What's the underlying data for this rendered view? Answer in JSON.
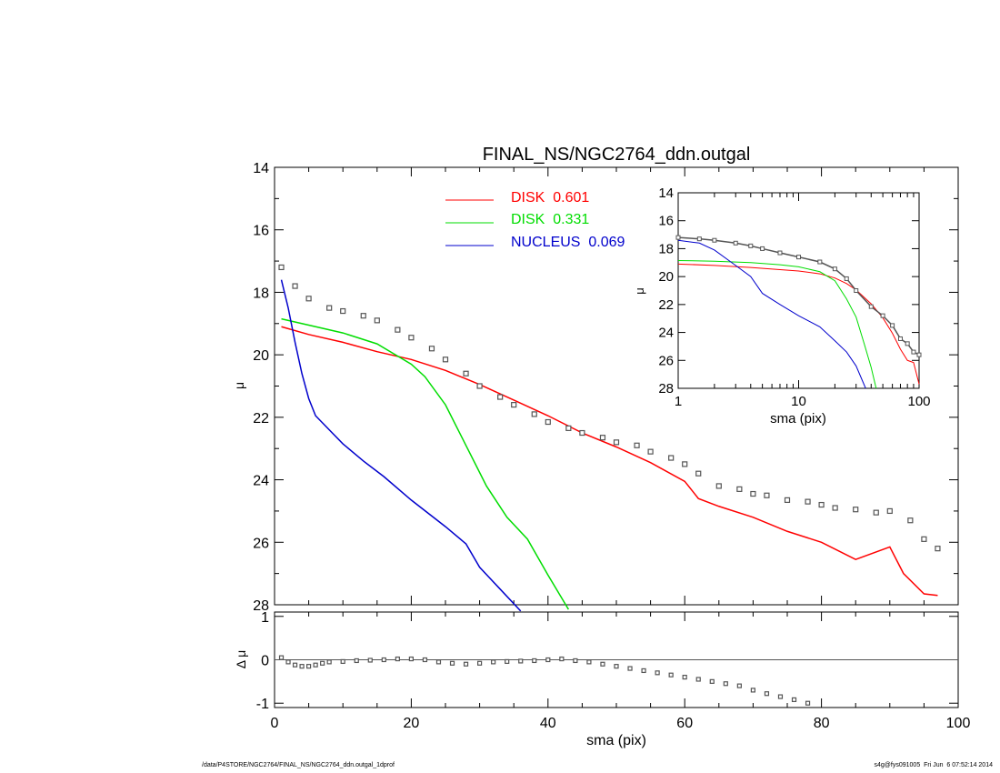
{
  "chart_data": [
    {
      "type": "scatter",
      "title": "FINAL_NS/NGC2764_ddn.outgal",
      "ylabel": "μ",
      "xlim": [
        0,
        100
      ],
      "ylim": [
        28,
        14
      ],
      "y_inverted": true,
      "y_ticks": [
        "14",
        "16",
        "18",
        "20",
        "22",
        "24",
        "26",
        "28"
      ],
      "legend_position": "top-center",
      "series": [
        {
          "name": "DISK  0.601",
          "color": "#ff0000",
          "mode": "line",
          "x": [
            1,
            5,
            10,
            15,
            20,
            25,
            30,
            35,
            40,
            45,
            50,
            55,
            60,
            62,
            65,
            70,
            75,
            80,
            85,
            90,
            92,
            95,
            97
          ],
          "y": [
            19.1,
            19.35,
            19.6,
            19.9,
            20.15,
            20.5,
            20.95,
            21.45,
            21.95,
            22.5,
            22.95,
            23.45,
            24.05,
            24.6,
            24.85,
            25.2,
            25.65,
            26.0,
            26.55,
            26.15,
            27.0,
            27.65,
            27.7
          ]
        },
        {
          "name": "DISK  0.331",
          "color": "#00dd00",
          "mode": "line",
          "x": [
            1,
            5,
            10,
            15,
            20,
            22,
            25,
            28,
            31,
            34,
            37,
            40,
            43
          ],
          "y": [
            18.85,
            19.05,
            19.3,
            19.65,
            20.3,
            20.7,
            21.6,
            22.9,
            24.2,
            25.2,
            25.9,
            27.05,
            28.15
          ]
        },
        {
          "name": "NUCLEUS  0.069",
          "color": "#0000cc",
          "mode": "line",
          "x": [
            1,
            2,
            3,
            4,
            5,
            6,
            8,
            10,
            13,
            16,
            20,
            25,
            28,
            30,
            33,
            36
          ],
          "y": [
            17.6,
            18.5,
            19.6,
            20.6,
            21.4,
            21.95,
            22.4,
            22.85,
            23.4,
            23.9,
            24.65,
            25.5,
            26.05,
            26.8,
            27.5,
            28.2
          ]
        },
        {
          "name": "",
          "color": "#555555",
          "mode": "markers",
          "x": [
            1,
            3,
            5,
            8,
            10,
            13,
            15,
            18,
            20,
            23,
            25,
            28,
            30,
            33,
            35,
            38,
            40,
            43,
            45,
            48,
            50,
            53,
            55,
            58,
            60,
            62,
            65,
            68,
            70,
            72,
            75,
            78,
            80,
            82,
            85,
            88,
            90,
            93,
            95,
            97
          ],
          "y": [
            17.2,
            17.8,
            18.2,
            18.5,
            18.6,
            18.75,
            18.9,
            19.2,
            19.45,
            19.8,
            20.15,
            20.6,
            21.0,
            21.35,
            21.6,
            21.9,
            22.15,
            22.35,
            22.5,
            22.65,
            22.8,
            22.9,
            23.1,
            23.3,
            23.5,
            23.8,
            24.2,
            24.3,
            24.45,
            24.5,
            24.65,
            24.7,
            24.8,
            24.9,
            24.95,
            25.05,
            25.0,
            25.3,
            25.9,
            26.2
          ]
        }
      ]
    },
    {
      "type": "scatter",
      "xlabel": "sma (pix)",
      "ylabel": "Δ μ",
      "xlim": [
        0,
        100
      ],
      "ylim": [
        -1.1,
        1.1
      ],
      "x_ticks": [
        "0",
        "20",
        "40",
        "60",
        "80",
        "100"
      ],
      "y_ticks": [
        "1",
        "0",
        "-1"
      ],
      "series": [
        {
          "name": "",
          "color": "#555555",
          "mode": "markers",
          "x": [
            1,
            2,
            3,
            4,
            5,
            6,
            7,
            8,
            10,
            12,
            14,
            16,
            18,
            20,
            22,
            24,
            26,
            28,
            30,
            32,
            34,
            36,
            38,
            40,
            42,
            44,
            46,
            48,
            50,
            52,
            54,
            56,
            58,
            60,
            62,
            64,
            66,
            68,
            70,
            72,
            74,
            76,
            78
          ],
          "y": [
            0.05,
            -0.05,
            -0.12,
            -0.15,
            -0.15,
            -0.12,
            -0.08,
            -0.05,
            -0.04,
            -0.02,
            -0.01,
            0.0,
            0.02,
            0.02,
            0.0,
            -0.05,
            -0.08,
            -0.1,
            -0.08,
            -0.05,
            -0.04,
            -0.03,
            -0.02,
            0.0,
            0.02,
            -0.02,
            -0.05,
            -0.1,
            -0.15,
            -0.2,
            -0.25,
            -0.3,
            -0.35,
            -0.4,
            -0.45,
            -0.5,
            -0.55,
            -0.6,
            -0.7,
            -0.78,
            -0.85,
            -0.92,
            -1.0
          ]
        }
      ]
    },
    {
      "type": "line",
      "xlabel": "sma (pix)",
      "ylabel": "μ",
      "x_scale": "log",
      "xlim": [
        1,
        100
      ],
      "ylim": [
        28,
        14
      ],
      "y_inverted": true,
      "x_ticks": [
        "1",
        "10",
        "100"
      ],
      "y_ticks": [
        "14",
        "16",
        "18",
        "20",
        "22",
        "24",
        "26",
        "28"
      ],
      "series": [
        {
          "name": "",
          "color": "#ff0000",
          "x": [
            1,
            2,
            4,
            7,
            10,
            15,
            20,
            25,
            30,
            40,
            50,
            60,
            70,
            80,
            90,
            100
          ],
          "y": [
            19.1,
            19.2,
            19.35,
            19.5,
            19.6,
            19.8,
            20.1,
            20.5,
            20.95,
            21.95,
            22.95,
            24.05,
            25.2,
            26.0,
            26.15,
            27.7
          ]
        },
        {
          "name": "",
          "color": "#00dd00",
          "x": [
            1,
            2,
            4,
            7,
            10,
            15,
            20,
            25,
            30,
            35,
            40,
            44
          ],
          "y": [
            18.85,
            18.9,
            19.0,
            19.15,
            19.3,
            19.65,
            20.3,
            21.6,
            22.9,
            24.8,
            26.5,
            28.2
          ]
        },
        {
          "name": "",
          "color": "#0000cc",
          "x": [
            1,
            1.5,
            2,
            3,
            4,
            5,
            7,
            10,
            15,
            20,
            25,
            30,
            36
          ],
          "y": [
            17.4,
            17.6,
            18.1,
            19.2,
            20.0,
            21.2,
            22.0,
            22.8,
            23.6,
            24.6,
            25.4,
            26.4,
            28.2
          ]
        },
        {
          "name": "",
          "color": "#555555",
          "marker": true,
          "x": [
            1,
            1.5,
            2,
            3,
            4,
            5,
            7,
            10,
            15,
            20,
            25,
            30,
            40,
            50,
            60,
            70,
            80,
            90,
            100
          ],
          "y": [
            17.2,
            17.3,
            17.4,
            17.6,
            17.8,
            18.0,
            18.3,
            18.6,
            18.95,
            19.45,
            20.15,
            21.0,
            22.15,
            22.8,
            23.5,
            24.45,
            24.8,
            25.4,
            25.6
          ]
        }
      ]
    }
  ],
  "footer": {
    "left": "/data/P4STORE/NGC2764/FINAL_NS/NGC2764_ddn.outgal_1dprof",
    "right": "s4g@fys091005  Fri Jun  6 07:52:14 2014"
  }
}
